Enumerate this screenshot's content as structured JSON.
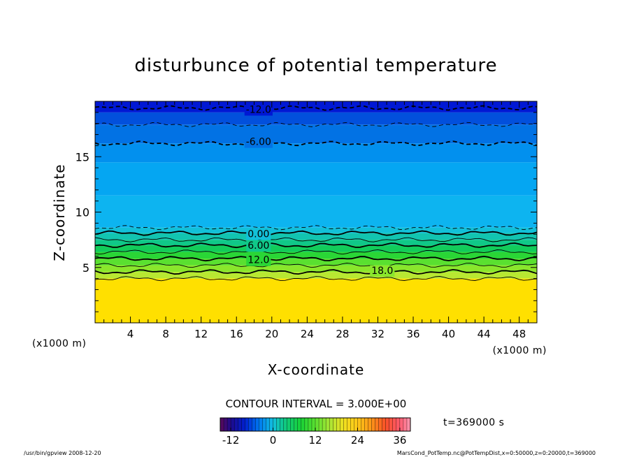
{
  "chart_data": {
    "type": "heatmap",
    "title": "disturbunce of potential temperature",
    "xlabel": "X-coordinate",
    "ylabel": "Z-coordinate",
    "x_unit_left": "(x1000 m)",
    "x_unit_right": "(x1000 m)",
    "xlim": [
      0,
      50
    ],
    "ylim": [
      0,
      20
    ],
    "x_ticks": [
      4,
      8,
      12,
      16,
      20,
      24,
      28,
      32,
      36,
      40,
      44,
      48
    ],
    "y_ticks": [
      5,
      10,
      15
    ],
    "grid": false,
    "bands": [
      {
        "z0": 0.0,
        "z1": 4.0,
        "value": 21,
        "color": "#ffe000"
      },
      {
        "z0": 4.0,
        "z1": 4.6,
        "value": 19,
        "color": "#b8e832"
      },
      {
        "z0": 4.6,
        "z1": 5.2,
        "value": 17,
        "color": "#8ae62c"
      },
      {
        "z0": 5.2,
        "z1": 5.8,
        "value": 15,
        "color": "#5ae030"
      },
      {
        "z0": 5.8,
        "z1": 6.4,
        "value": 13,
        "color": "#2ad636"
      },
      {
        "z0": 6.4,
        "z1": 7.0,
        "value": 10,
        "color": "#12cc5a"
      },
      {
        "z0": 7.0,
        "z1": 7.5,
        "value": 7,
        "color": "#10c888"
      },
      {
        "z0": 7.5,
        "z1": 8.1,
        "value": 4,
        "color": "#12c4b0"
      },
      {
        "z0": 8.1,
        "z1": 8.6,
        "value": 1,
        "color": "#12c0d8"
      },
      {
        "z0": 8.6,
        "z1": 11.5,
        "value": -2,
        "color": "#0db4f0"
      },
      {
        "z0": 11.5,
        "z1": 14.5,
        "value": -4,
        "color": "#05a6f2"
      },
      {
        "z0": 14.5,
        "z1": 16.2,
        "value": -5,
        "color": "#0290ee"
      },
      {
        "z0": 16.2,
        "z1": 17.9,
        "value": -7,
        "color": "#0272e4"
      },
      {
        "z0": 17.9,
        "z1": 19.0,
        "value": -10,
        "color": "#0250dc"
      },
      {
        "z0": 19.0,
        "z1": 20.0,
        "value": -13,
        "color": "#0018d4"
      }
    ],
    "contours": [
      {
        "z": 19.4,
        "value": -12,
        "label": "-12.0",
        "label_x": 18.5,
        "style": "dashed",
        "major": true
      },
      {
        "z": 17.9,
        "value": -9,
        "style": "dashed",
        "major": false
      },
      {
        "z": 16.2,
        "value": -6,
        "label": "-6.00",
        "label_x": 18.5,
        "style": "dashed",
        "major": true
      },
      {
        "z": 8.6,
        "value": -3,
        "style": "dashed",
        "major": false
      },
      {
        "z": 8.1,
        "value": 0,
        "label": "0.00",
        "label_x": 18.5,
        "style": "solid",
        "major": true
      },
      {
        "z": 7.5,
        "value": 3,
        "style": "solid",
        "major": false
      },
      {
        "z": 7.0,
        "value": 6,
        "label": "6.00",
        "label_x": 18.5,
        "style": "solid",
        "major": true
      },
      {
        "z": 6.4,
        "value": 9,
        "style": "solid",
        "major": false
      },
      {
        "z": 5.8,
        "value": 12,
        "label": "12.0",
        "label_x": 18.5,
        "style": "solid",
        "major": true
      },
      {
        "z": 5.2,
        "value": 15,
        "style": "solid",
        "major": false
      },
      {
        "z": 4.6,
        "value": 18,
        "label": "18.0",
        "label_x": 32.5,
        "style": "solid",
        "major": true
      },
      {
        "z": 4.0,
        "value": 21,
        "style": "solid",
        "major": false
      }
    ]
  },
  "contour_interval_text": "CONTOUR INTERVAL = 3.000E+00",
  "time_text": "t=369000 s",
  "colorbar": {
    "min": -15,
    "max": 39,
    "ticks": [
      -12,
      0,
      12,
      24,
      36
    ],
    "stops": [
      {
        "value": -15,
        "color": "#5a0a5a"
      },
      {
        "value": -12,
        "color": "#1e0a8c"
      },
      {
        "value": -8,
        "color": "#0020d0"
      },
      {
        "value": -4,
        "color": "#0078f0"
      },
      {
        "value": 0,
        "color": "#12c0e0"
      },
      {
        "value": 3,
        "color": "#10c888"
      },
      {
        "value": 8,
        "color": "#18d236"
      },
      {
        "value": 12,
        "color": "#5ae030"
      },
      {
        "value": 16,
        "color": "#a8e634"
      },
      {
        "value": 20,
        "color": "#f0e020"
      },
      {
        "value": 24,
        "color": "#ffc818"
      },
      {
        "value": 28,
        "color": "#ff9418"
      },
      {
        "value": 32,
        "color": "#f85028"
      },
      {
        "value": 36,
        "color": "#ff5a6e"
      },
      {
        "value": 39,
        "color": "#ff9ab4"
      }
    ]
  },
  "footer_left": "/usr/bin/gpview   2008-12-20",
  "footer_right": "MarsCond_PotTemp.nc@PotTempDist,x=0:50000,z=0:20000,t=369000"
}
